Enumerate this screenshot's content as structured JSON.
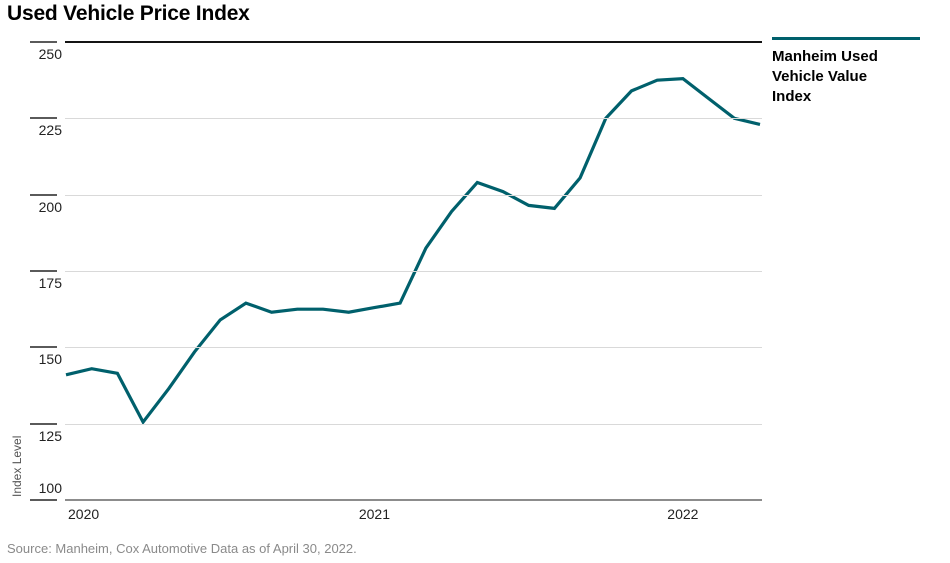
{
  "title": "Used Vehicle Price Index",
  "legend": {
    "label": "Manheim Used Vehicle Value Index"
  },
  "ylabel": "Index Level",
  "source": "Source: Manheim, Cox Automotive Data as of April 30, 2022.",
  "colors": {
    "line": "#00606c",
    "grid": "#d9d9d9",
    "top_rule": "#141414",
    "bottom_axis": "#8c8c8c",
    "tick": "#5a5a5a",
    "text": "#222222",
    "muted": "#8a8a8a"
  },
  "chart_data": {
    "type": "line",
    "title": "Used Vehicle Price Index",
    "xlabel": "",
    "ylabel": "Index Level",
    "ylim": [
      100,
      250
    ],
    "grid": true,
    "legend_position": "right",
    "x": [
      "Jan 2020",
      "Feb 2020",
      "Mar 2020",
      "Apr 2020",
      "May 2020",
      "Jun 2020",
      "Jul 2020",
      "Aug 2020",
      "Sep 2020",
      "Oct 2020",
      "Nov 2020",
      "Dec 2020",
      "Jan 2021",
      "Feb 2021",
      "Mar 2021",
      "Apr 2021",
      "May 2021",
      "Jun 2021",
      "Jul 2021",
      "Aug 2021",
      "Sep 2021",
      "Oct 2021",
      "Nov 2021",
      "Dec 2021",
      "Jan 2022",
      "Feb 2022",
      "Mar 2022",
      "Apr 2022"
    ],
    "series": [
      {
        "name": "Manheim Used Vehicle Value Index",
        "values": [
          141,
          143,
          141.5,
          125.5,
          136.5,
          148.5,
          159,
          164.5,
          161.5,
          162.5,
          162.5,
          161.5,
          163,
          164.5,
          182.5,
          194.5,
          204,
          201,
          196.5,
          195.5,
          205.5,
          225,
          234,
          237.5,
          238,
          231.5,
          225,
          223
        ]
      }
    ],
    "yticks": [
      250,
      225,
      200,
      175,
      150,
      125,
      100
    ],
    "xticks": [
      {
        "label": "2020",
        "month_index": 0,
        "align": "left"
      },
      {
        "label": "2021",
        "month_index": 12,
        "align": "center"
      },
      {
        "label": "2022",
        "month_index": 24,
        "align": "center"
      }
    ]
  }
}
